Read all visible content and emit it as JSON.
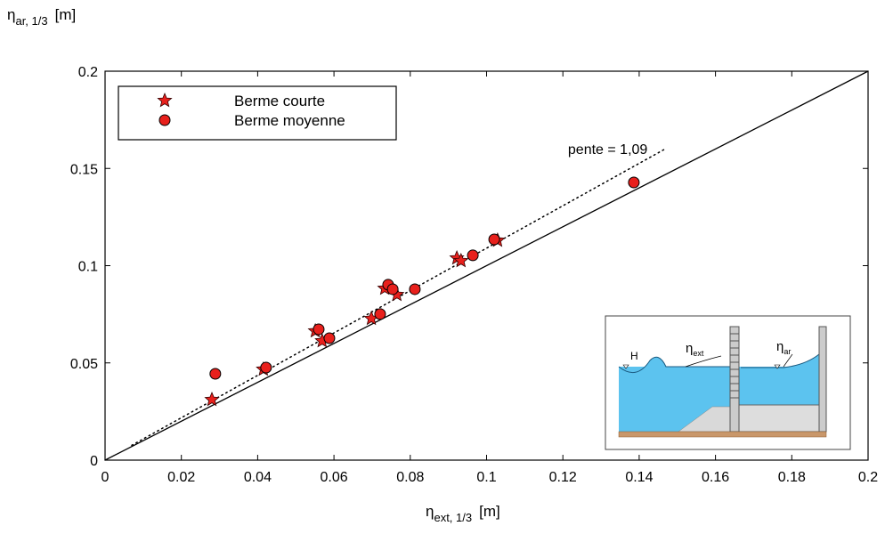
{
  "chart_data": {
    "type": "scatter",
    "xlabel": {
      "symbol": "η",
      "sub": "ext, 1/3",
      "unit": "[m]"
    },
    "ylabel": {
      "symbol": "η",
      "sub": "ar, 1/3",
      "unit": "[m]"
    },
    "xlim": [
      0,
      0.2
    ],
    "ylim": [
      0,
      0.2
    ],
    "xticks": [
      0,
      0.02,
      0.04,
      0.06,
      0.08,
      0.1,
      0.12,
      0.14,
      0.16,
      0.18,
      0.2
    ],
    "yticks": [
      0,
      0.05,
      0.1,
      0.15,
      0.2
    ],
    "legend": "upper left",
    "series": [
      {
        "name": "Berme courte",
        "marker": "star",
        "color": "#e8201c",
        "x": [
          0.028,
          0.0415,
          0.0551,
          0.0569,
          0.0698,
          0.0733,
          0.0765,
          0.0922,
          0.0933,
          0.1029
        ],
        "values": [
          0.0311,
          0.0467,
          0.0664,
          0.0613,
          0.0728,
          0.0883,
          0.0851,
          0.1039,
          0.1025,
          0.113
        ]
      },
      {
        "name": "Berme moyenne",
        "marker": "circle",
        "color": "#e8201c",
        "x": [
          0.0289,
          0.0422,
          0.056,
          0.0588,
          0.0721,
          0.0742,
          0.0754,
          0.0812,
          0.0964,
          0.102,
          0.1386
        ],
        "values": [
          0.0444,
          0.0476,
          0.0673,
          0.0627,
          0.0751,
          0.0902,
          0.0879,
          0.0879,
          0.1053,
          0.1135,
          0.1428
        ]
      }
    ],
    "lines": [
      {
        "slope": 1,
        "style": "solid",
        "x": [
          0,
          0.2
        ]
      },
      {
        "slope": 1.09,
        "style": "dotted",
        "x": [
          0.007,
          0.147
        ],
        "label": "pente = 1,09"
      }
    ],
    "inset": {
      "wave": "H",
      "ext": {
        "symbol": "η",
        "sub": "ext"
      },
      "ar": {
        "symbol": "η",
        "sub": "ar"
      }
    }
  }
}
